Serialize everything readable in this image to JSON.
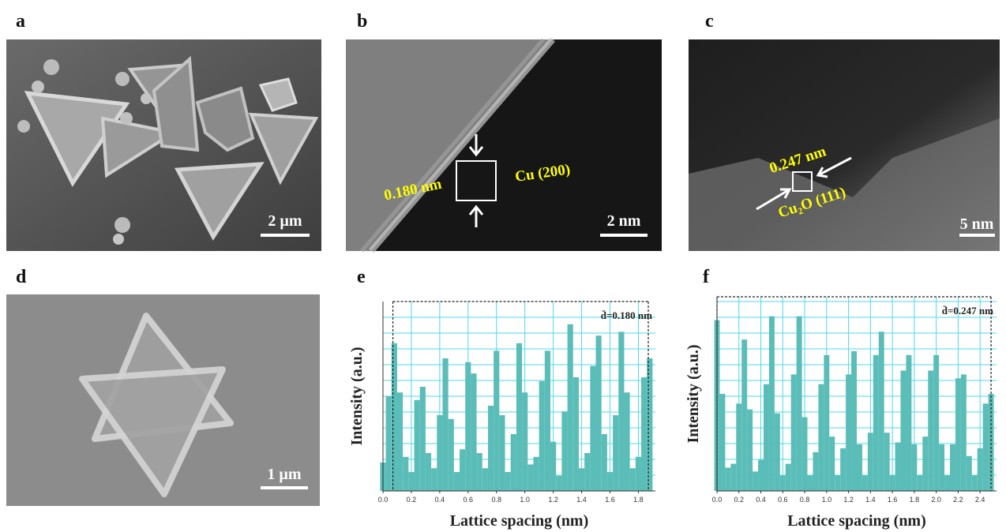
{
  "panels": [
    {
      "label": "a",
      "scale_bar": "2 µm"
    },
    {
      "label": "b",
      "annotations": [
        "0.180 nm",
        "Cu (200)"
      ],
      "scale_bar": "2 nm"
    },
    {
      "label": "c",
      "annotations": [
        "0.247 nm",
        "Cu₂O (111)"
      ],
      "scale_bar": "5 nm"
    },
    {
      "label": "d",
      "scale_bar": "1 µm"
    },
    {
      "label": "e"
    },
    {
      "label": "f"
    }
  ],
  "chart_data": [
    {
      "type": "bar",
      "x_label": "Lattice spacing (nm)",
      "y_label": "Intensity (a.u.)",
      "annotation": "d̄=0.180 nm",
      "color": "#5bbdb8",
      "grid": true,
      "x": [
        0.0,
        0.04,
        0.08,
        0.12,
        0.16,
        0.2,
        0.24,
        0.28,
        0.32,
        0.36,
        0.4,
        0.44,
        0.48,
        0.52,
        0.56,
        0.6,
        0.64,
        0.68,
        0.72,
        0.76,
        0.8,
        0.84,
        0.88,
        0.92,
        0.96,
        1.0,
        1.04,
        1.08,
        1.12,
        1.16,
        1.2,
        1.24,
        1.28,
        1.32,
        1.36,
        1.4,
        1.44,
        1.48,
        1.52,
        1.56,
        1.6,
        1.64,
        1.68,
        1.72,
        1.76,
        1.8,
        1.84,
        1.88
      ],
      "values": [
        15,
        50,
        78,
        52,
        18,
        10,
        48,
        55,
        20,
        12,
        40,
        70,
        38,
        10,
        22,
        68,
        62,
        20,
        12,
        45,
        74,
        40,
        10,
        30,
        78,
        52,
        14,
        18,
        58,
        74,
        26,
        8,
        42,
        88,
        60,
        12,
        20,
        66,
        82,
        30,
        10,
        40,
        84,
        52,
        12,
        18,
        60,
        70
      ],
      "bounds": [
        0.07,
        1.87
      ],
      "xlim": [
        0,
        1.92
      ],
      "ylim": [
        0,
        100
      ],
      "xticks": [
        {
          "value": 0,
          "label": "0.0"
        },
        0.2,
        0.4,
        0.6,
        0.8,
        {
          "value": 1,
          "label": "1.0"
        },
        1.2,
        1.4,
        1.6,
        1.8
      ]
    },
    {
      "type": "bar",
      "x_label": "Lattice spacing (nm)",
      "y_label": "Intensity (a.u.)",
      "annotation": "d̄=0.247 nm",
      "color": "#5bbdb8",
      "grid": true,
      "x": [
        0.0,
        0.05,
        0.1,
        0.15,
        0.2,
        0.25,
        0.3,
        0.35,
        0.4,
        0.45,
        0.5,
        0.55,
        0.6,
        0.65,
        0.7,
        0.75,
        0.8,
        0.85,
        0.9,
        0.95,
        1.0,
        1.05,
        1.1,
        1.15,
        1.2,
        1.25,
        1.3,
        1.35,
        1.4,
        1.45,
        1.5,
        1.55,
        1.6,
        1.65,
        1.7,
        1.75,
        1.8,
        1.85,
        1.9,
        1.95,
        2.0,
        2.05,
        2.1,
        2.15,
        2.2,
        2.25,
        2.3,
        2.35,
        2.4,
        2.45,
        2.5
      ],
      "values": [
        88,
        50,
        12,
        14,
        45,
        78,
        42,
        10,
        16,
        55,
        90,
        40,
        8,
        14,
        60,
        90,
        38,
        8,
        20,
        55,
        70,
        28,
        8,
        22,
        60,
        72,
        24,
        8,
        30,
        70,
        82,
        30,
        8,
        25,
        62,
        70,
        24,
        8,
        28,
        62,
        70,
        24,
        8,
        24,
        58,
        60,
        18,
        8,
        22,
        45,
        50
      ],
      "bounds": [
        0,
        2.5
      ],
      "xlim": [
        0,
        2.55
      ],
      "ylim": [
        0,
        100
      ],
      "xticks": [
        {
          "value": 0,
          "label": "0.0"
        },
        0.2,
        0.4,
        0.6,
        0.8,
        {
          "value": 1,
          "label": "1.0"
        },
        1.2,
        1.4,
        1.6,
        1.8,
        {
          "value": 2,
          "label": "2.0"
        },
        2.2,
        2.4
      ]
    }
  ]
}
